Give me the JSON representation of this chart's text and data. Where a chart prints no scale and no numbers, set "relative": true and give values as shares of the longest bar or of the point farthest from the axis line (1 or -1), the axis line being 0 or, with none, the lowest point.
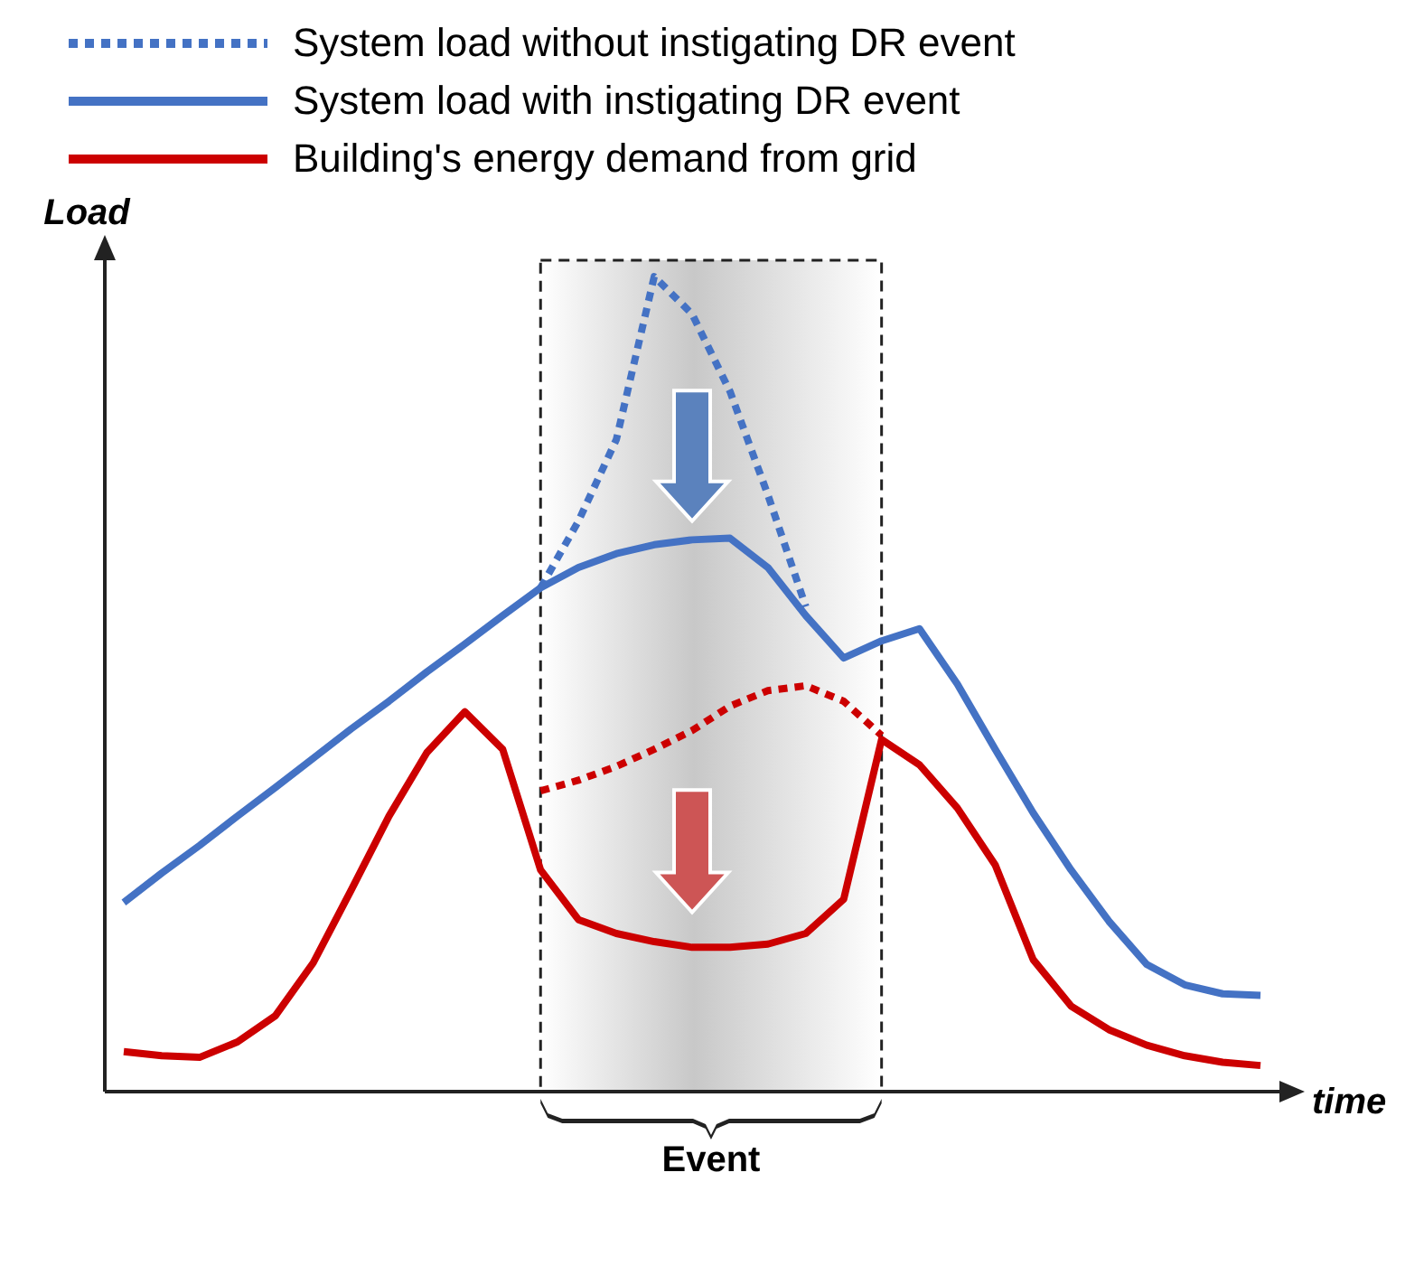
{
  "chart_data": {
    "type": "line",
    "relative": true,
    "xlabel": "time",
    "ylabel": "Load",
    "legend": "top left",
    "annotations": [
      "Event"
    ],
    "categories": [
      null,
      null,
      null,
      null,
      null,
      null,
      null,
      null,
      null,
      null,
      null,
      null,
      null,
      null,
      null,
      null,
      null,
      null,
      null,
      null,
      null,
      null,
      null,
      null,
      null,
      null,
      null,
      null,
      null,
      null,
      null
    ],
    "series": [
      {
        "name": "System load without instigating DR event",
        "color": "#4472c4",
        "line_style": "dotted",
        "values": [
          null,
          null,
          null,
          null,
          null,
          null,
          null,
          null,
          null,
          null,
          null,
          0.618,
          0.7,
          0.8,
          1.0,
          0.954,
          0.859,
          0.732,
          0.595,
          null,
          null,
          null,
          null,
          null,
          null,
          null,
          null,
          null,
          null,
          null,
          null
        ]
      },
      {
        "name": "System load with instigating DR event",
        "color": "#4472c4",
        "line_style": "solid",
        "values": [
          0.232,
          0.268,
          0.302,
          0.338,
          0.373,
          0.409,
          0.445,
          0.479,
          0.515,
          0.549,
          0.584,
          0.618,
          0.643,
          0.66,
          0.671,
          0.677,
          0.679,
          0.643,
          0.584,
          0.532,
          0.553,
          0.568,
          0.5,
          0.42,
          0.342,
          0.272,
          0.209,
          0.156,
          0.131,
          0.12,
          0.118
        ]
      },
      {
        "name": "Building's energy demand from grid",
        "color": "#cc0000",
        "line_style": "solid",
        "values": [
          0.049,
          0.044,
          0.042,
          0.061,
          0.093,
          0.158,
          0.247,
          0.338,
          0.416,
          0.466,
          0.42,
          0.272,
          0.211,
          0.194,
          0.184,
          0.177,
          0.177,
          0.181,
          0.194,
          0.236,
          0.432,
          0.401,
          0.348,
          0.278,
          0.162,
          0.105,
          0.076,
          0.057,
          0.044,
          0.036,
          0.032
        ]
      },
      {
        "color": "#cc0000",
        "line_style": "dotted",
        "values": [
          null,
          null,
          null,
          null,
          null,
          null,
          null,
          null,
          null,
          null,
          null,
          0.369,
          0.382,
          0.399,
          0.42,
          0.443,
          0.473,
          0.492,
          0.498,
          0.479,
          0.437,
          null,
          null,
          null,
          null,
          null,
          null,
          null,
          null,
          null,
          null
        ]
      }
    ]
  }
}
